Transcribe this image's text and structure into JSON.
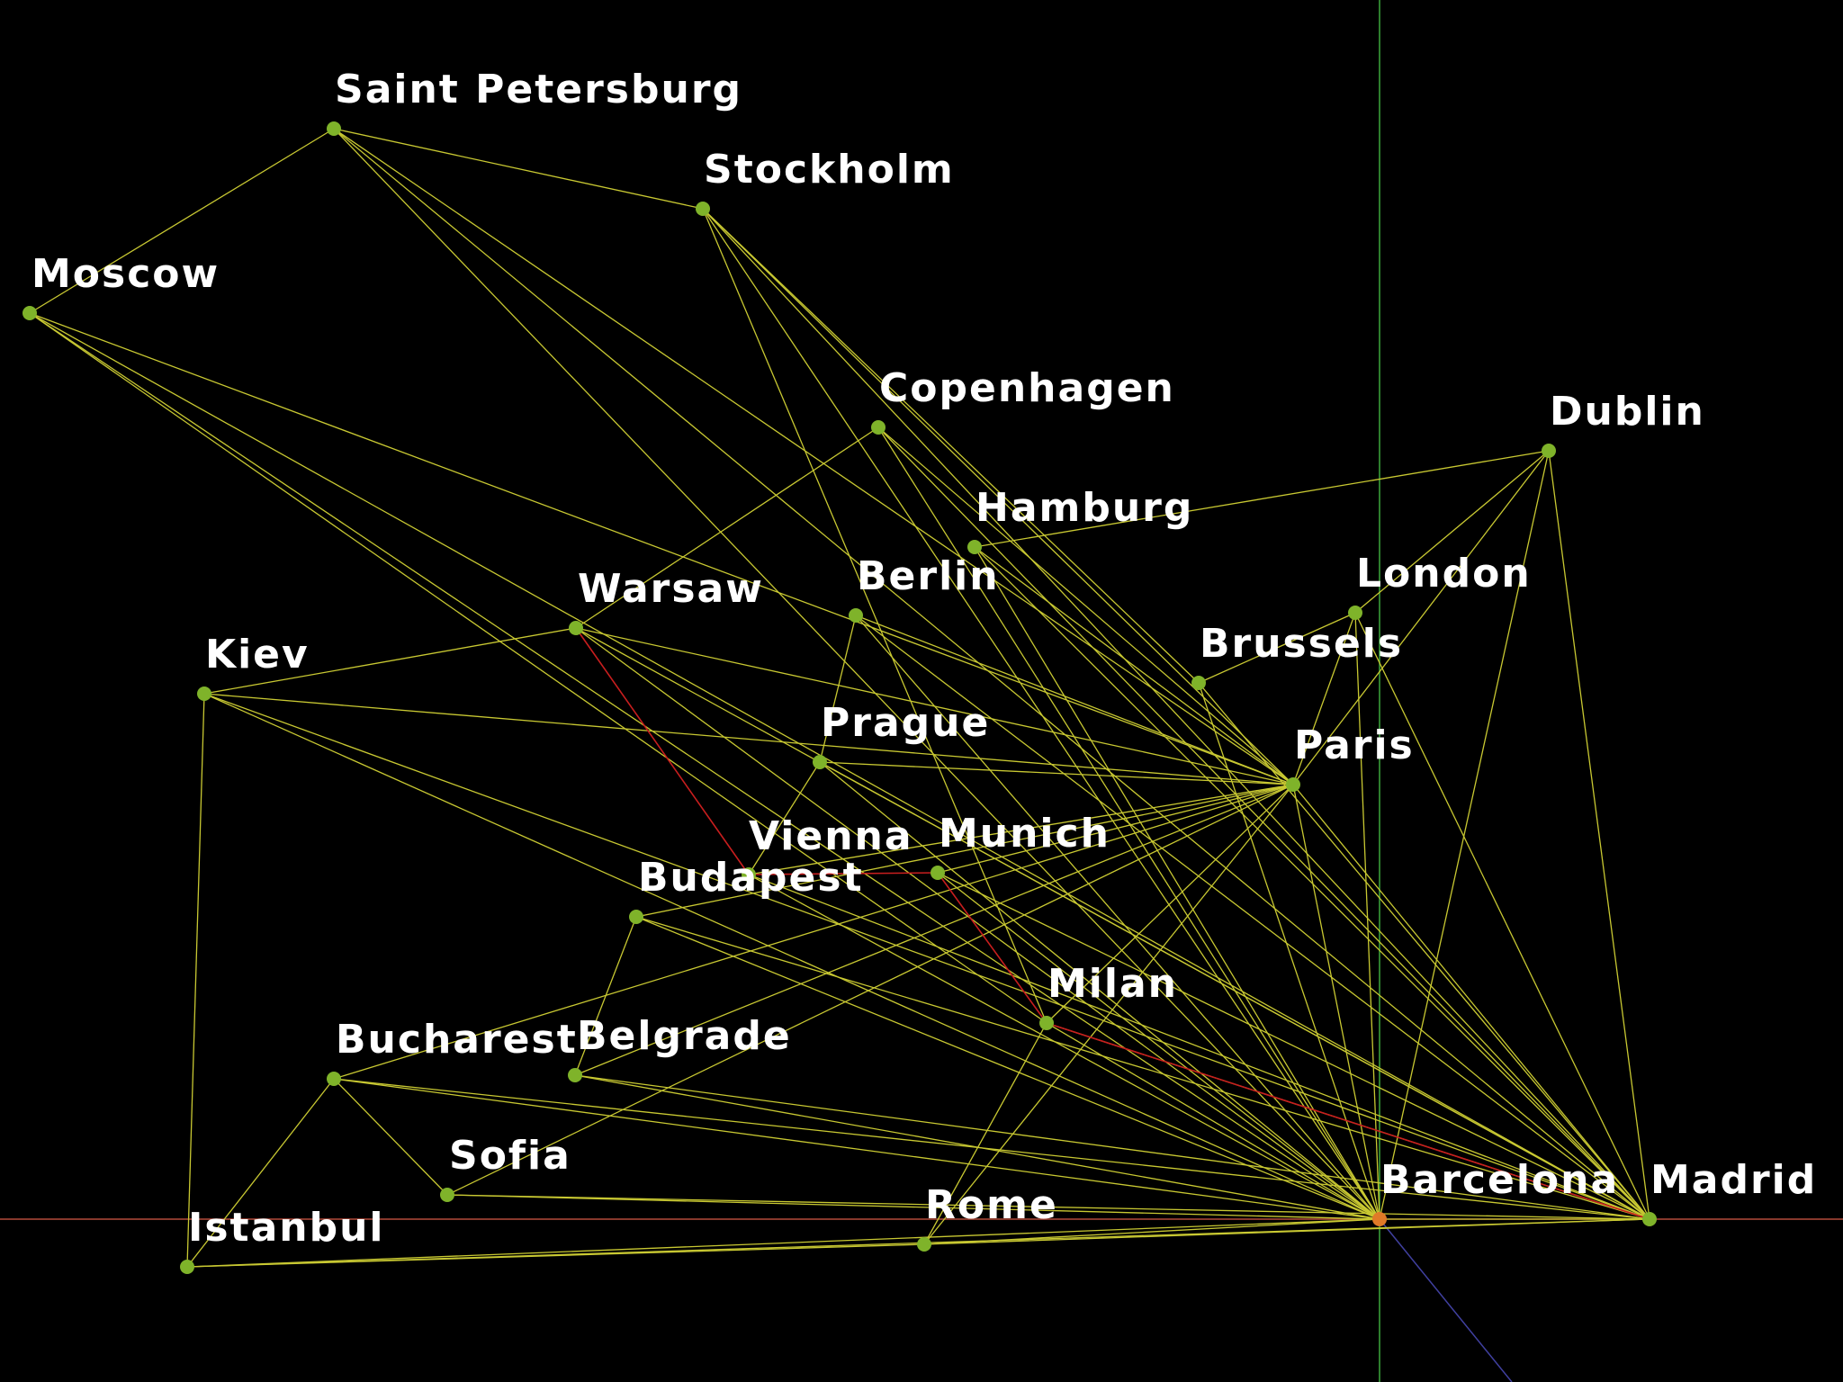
{
  "colors": {
    "background": "#000000",
    "edge": "#c8c832",
    "path": "#c81e1e",
    "node": "#7fb32a",
    "origin_node": "#e07a28",
    "label": "#ffffff",
    "axis_x": "#b44a3a",
    "axis_y": "#3ca83c",
    "axis_z": "#4040a0"
  },
  "cities": [
    {
      "id": "saint-petersburg",
      "name": "Saint Petersburg"
    },
    {
      "id": "stockholm",
      "name": "Stockholm"
    },
    {
      "id": "moscow",
      "name": "Moscow"
    },
    {
      "id": "copenhagen",
      "name": "Copenhagen"
    },
    {
      "id": "dublin",
      "name": "Dublin"
    },
    {
      "id": "hamburg",
      "name": "Hamburg"
    },
    {
      "id": "berlin",
      "name": "Berlin"
    },
    {
      "id": "warsaw",
      "name": "Warsaw"
    },
    {
      "id": "london",
      "name": "London"
    },
    {
      "id": "kiev",
      "name": "Kiev"
    },
    {
      "id": "brussels",
      "name": "Brussels"
    },
    {
      "id": "prague",
      "name": "Prague"
    },
    {
      "id": "paris",
      "name": "Paris"
    },
    {
      "id": "vienna",
      "name": "Vienna"
    },
    {
      "id": "munich",
      "name": "Munich"
    },
    {
      "id": "budapest",
      "name": "Budapest"
    },
    {
      "id": "milan",
      "name": "Milan"
    },
    {
      "id": "bucharest",
      "name": "Bucharest"
    },
    {
      "id": "belgrade",
      "name": "Belgrade"
    },
    {
      "id": "sofia",
      "name": "Sofia"
    },
    {
      "id": "barcelona",
      "name": "Barcelona"
    },
    {
      "id": "madrid",
      "name": "Madrid"
    },
    {
      "id": "rome",
      "name": "Rome"
    },
    {
      "id": "istanbul",
      "name": "Istanbul"
    }
  ],
  "origin_city": "barcelona",
  "edges": [
    [
      "saint-petersburg",
      "moscow"
    ],
    [
      "saint-petersburg",
      "stockholm"
    ],
    [
      "saint-petersburg",
      "paris"
    ],
    [
      "saint-petersburg",
      "barcelona"
    ],
    [
      "saint-petersburg",
      "madrid"
    ],
    [
      "stockholm",
      "paris"
    ],
    [
      "stockholm",
      "barcelona"
    ],
    [
      "stockholm",
      "madrid"
    ],
    [
      "stockholm",
      "brussels"
    ],
    [
      "stockholm",
      "milan"
    ],
    [
      "moscow",
      "paris"
    ],
    [
      "moscow",
      "barcelona"
    ],
    [
      "moscow",
      "madrid"
    ],
    [
      "moscow",
      "milan"
    ],
    [
      "copenhagen",
      "warsaw"
    ],
    [
      "copenhagen",
      "paris"
    ],
    [
      "copenhagen",
      "barcelona"
    ],
    [
      "copenhagen",
      "madrid"
    ],
    [
      "dublin",
      "hamburg"
    ],
    [
      "dublin",
      "london"
    ],
    [
      "dublin",
      "paris"
    ],
    [
      "dublin",
      "barcelona"
    ],
    [
      "dublin",
      "madrid"
    ],
    [
      "hamburg",
      "paris"
    ],
    [
      "hamburg",
      "barcelona"
    ],
    [
      "hamburg",
      "madrid"
    ],
    [
      "berlin",
      "prague"
    ],
    [
      "berlin",
      "paris"
    ],
    [
      "berlin",
      "barcelona"
    ],
    [
      "berlin",
      "madrid"
    ],
    [
      "warsaw",
      "kiev"
    ],
    [
      "warsaw",
      "paris"
    ],
    [
      "warsaw",
      "barcelona"
    ],
    [
      "warsaw",
      "madrid"
    ],
    [
      "london",
      "brussels"
    ],
    [
      "london",
      "paris"
    ],
    [
      "london",
      "barcelona"
    ],
    [
      "london",
      "madrid"
    ],
    [
      "brussels",
      "barcelona"
    ],
    [
      "brussels",
      "madrid"
    ],
    [
      "kiev",
      "paris"
    ],
    [
      "kiev",
      "istanbul"
    ],
    [
      "kiev",
      "barcelona"
    ],
    [
      "kiev",
      "madrid"
    ],
    [
      "prague",
      "vienna"
    ],
    [
      "prague",
      "paris"
    ],
    [
      "prague",
      "barcelona"
    ],
    [
      "prague",
      "madrid"
    ],
    [
      "vienna",
      "paris"
    ],
    [
      "vienna",
      "barcelona"
    ],
    [
      "vienna",
      "madrid"
    ],
    [
      "munich",
      "paris"
    ],
    [
      "munich",
      "barcelona"
    ],
    [
      "munich",
      "madrid"
    ],
    [
      "budapest",
      "belgrade"
    ],
    [
      "budapest",
      "paris"
    ],
    [
      "budapest",
      "barcelona"
    ],
    [
      "budapest",
      "madrid"
    ],
    [
      "milan",
      "paris"
    ],
    [
      "milan",
      "rome"
    ],
    [
      "milan",
      "barcelona"
    ],
    [
      "milan",
      "madrid"
    ],
    [
      "bucharest",
      "sofia"
    ],
    [
      "bucharest",
      "istanbul"
    ],
    [
      "bucharest",
      "paris"
    ],
    [
      "bucharest",
      "barcelona"
    ],
    [
      "bucharest",
      "madrid"
    ],
    [
      "belgrade",
      "paris"
    ],
    [
      "belgrade",
      "barcelona"
    ],
    [
      "belgrade",
      "madrid"
    ],
    [
      "sofia",
      "paris"
    ],
    [
      "sofia",
      "barcelona"
    ],
    [
      "sofia",
      "madrid"
    ],
    [
      "rome",
      "paris"
    ],
    [
      "rome",
      "barcelona"
    ],
    [
      "rome",
      "madrid"
    ],
    [
      "istanbul",
      "rome"
    ],
    [
      "istanbul",
      "barcelona"
    ],
    [
      "istanbul",
      "madrid"
    ],
    [
      "paris",
      "barcelona"
    ],
    [
      "paris",
      "madrid"
    ],
    [
      "barcelona",
      "madrid"
    ]
  ],
  "highlighted_edges": [
    [
      "warsaw",
      "vienna"
    ],
    [
      "vienna",
      "munich"
    ],
    [
      "munich",
      "milan"
    ],
    [
      "milan",
      "madrid"
    ]
  ]
}
